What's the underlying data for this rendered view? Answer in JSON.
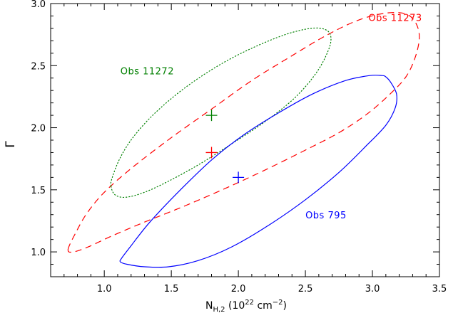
{
  "chart_data": {
    "type": "contour",
    "title": "",
    "xlabel": {
      "main": "N",
      "sub": "H,2",
      "rest": " (10",
      "sup": "22",
      "unit": " cm",
      "unit_sup": "−2",
      "close": ")"
    },
    "ylabel": "Γ",
    "xlim": [
      0.6,
      3.5
    ],
    "ylim": [
      0.8,
      3.0
    ],
    "xticks": [
      1.0,
      1.5,
      2.0,
      2.5,
      3.0,
      3.5
    ],
    "xtick_labels": [
      "1.0",
      "1.5",
      "2.0",
      "2.5",
      "3.0",
      "3.5"
    ],
    "yticks": [
      1.0,
      1.5,
      2.0,
      2.5,
      3.0
    ],
    "ytick_labels": [
      "1.0",
      "1.5",
      "2.0",
      "2.5",
      "3.0"
    ],
    "grid": false,
    "series": [
      {
        "name": "Obs 11273",
        "color": "#ff0000",
        "line_style": "dashed",
        "best_fit": {
          "x": 1.8,
          "y": 1.8
        },
        "contour": {
          "x": [
            0.73,
            0.79,
            0.87,
            1.0,
            1.21,
            1.5,
            1.8,
            2.1,
            2.4,
            2.65,
            2.88,
            3.08,
            3.24,
            3.32,
            3.35,
            3.32,
            3.25,
            3.13,
            2.96,
            2.75,
            2.5,
            2.2,
            1.9,
            1.6,
            1.3,
            1.06,
            0.88,
            0.77,
            0.73
          ],
          "y": [
            1.02,
            1.16,
            1.31,
            1.48,
            1.68,
            1.92,
            2.15,
            2.38,
            2.58,
            2.74,
            2.86,
            2.92,
            2.92,
            2.85,
            2.73,
            2.57,
            2.41,
            2.27,
            2.11,
            1.96,
            1.82,
            1.66,
            1.51,
            1.37,
            1.24,
            1.13,
            1.04,
            1.0,
            1.02
          ]
        }
      },
      {
        "name": "Obs 11272",
        "color": "#008000",
        "line_style": "dotted",
        "best_fit": {
          "x": 1.8,
          "y": 2.1
        },
        "contour": {
          "x": [
            1.05,
            1.06,
            1.12,
            1.22,
            1.38,
            1.6,
            1.85,
            2.1,
            2.35,
            2.54,
            2.65,
            2.69,
            2.67,
            2.58,
            2.42,
            2.2,
            1.95,
            1.7,
            1.48,
            1.3,
            1.16,
            1.08,
            1.05
          ],
          "y": [
            1.53,
            1.6,
            1.76,
            1.93,
            2.12,
            2.32,
            2.5,
            2.64,
            2.75,
            2.8,
            2.79,
            2.73,
            2.62,
            2.44,
            2.24,
            2.05,
            1.87,
            1.7,
            1.57,
            1.48,
            1.44,
            1.46,
            1.53
          ]
        }
      },
      {
        "name": "Obs 795",
        "color": "#0000ff",
        "line_style": "solid",
        "best_fit": {
          "x": 2.0,
          "y": 1.6
        },
        "contour": {
          "x": [
            1.13,
            1.2,
            1.34,
            1.55,
            1.8,
            2.05,
            2.3,
            2.55,
            2.8,
            2.98,
            3.07,
            3.1,
            3.14,
            3.18,
            3.17,
            3.1,
            2.95,
            2.75,
            2.5,
            2.22,
            1.95,
            1.7,
            1.48,
            1.3,
            1.17,
            1.12,
            1.13
          ],
          "y": [
            0.95,
            1.05,
            1.24,
            1.48,
            1.74,
            1.95,
            2.12,
            2.27,
            2.38,
            2.42,
            2.42,
            2.41,
            2.36,
            2.27,
            2.16,
            2.02,
            1.85,
            1.64,
            1.42,
            1.21,
            1.04,
            0.93,
            0.88,
            0.88,
            0.9,
            0.92,
            0.95
          ]
        }
      }
    ],
    "annotations": [
      {
        "text": "Obs 11273",
        "color": "#ff0000",
        "x": 2.97,
        "y": 2.86
      },
      {
        "text": "Obs 11272",
        "color": "#008000",
        "x": 1.12,
        "y": 2.43
      },
      {
        "text": "Obs 795",
        "color": "#0000ff",
        "x": 2.5,
        "y": 1.27
      }
    ]
  }
}
